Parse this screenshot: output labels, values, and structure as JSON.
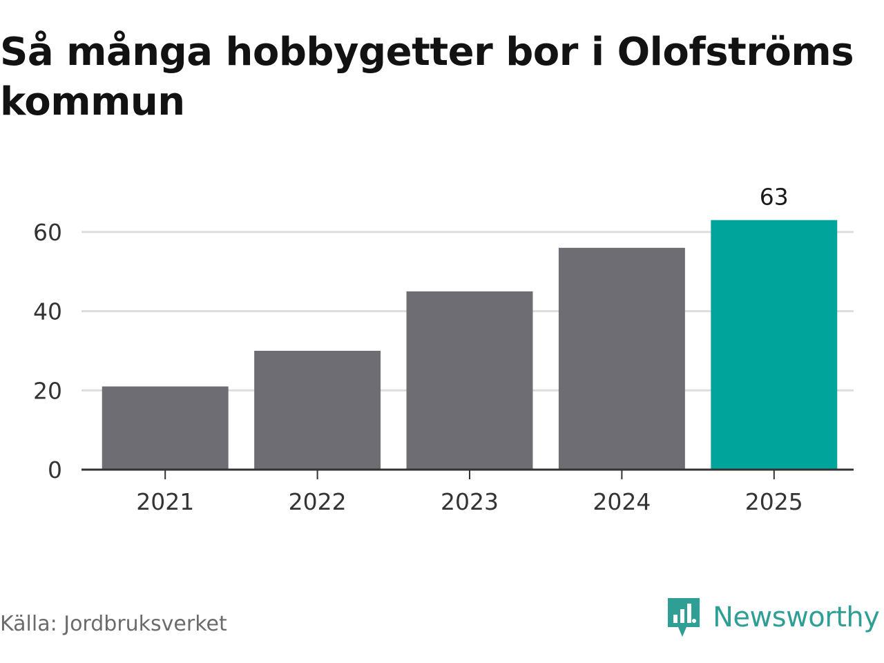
{
  "title": "Så många hobbygetter bor i Olofströms kommun",
  "source": "Källa: Jordbruksverket",
  "brand": {
    "name": "Newsworthy",
    "icon": "newsworthy-logo-icon",
    "color": "#2f9e95"
  },
  "chart_data": {
    "type": "bar",
    "title": "Så många hobbygetter bor i Olofströms kommun",
    "xlabel": "",
    "ylabel": "",
    "categories": [
      "2021",
      "2022",
      "2023",
      "2024",
      "2025"
    ],
    "values": [
      21,
      30,
      45,
      56,
      63
    ],
    "highlight_index": 4,
    "labeled_indices": [
      4
    ],
    "ylim": [
      0,
      68
    ],
    "yticks": [
      0,
      20,
      40,
      60
    ],
    "grid": true,
    "legend": "none",
    "colors": {
      "bar": "#6e6d73",
      "highlight": "#00a49a",
      "grid": "#dddddd",
      "axis": "#333333"
    }
  }
}
